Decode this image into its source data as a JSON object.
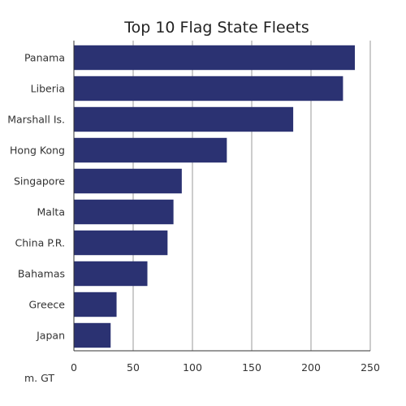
{
  "chart_data": {
    "type": "bar",
    "orientation": "horizontal",
    "title": "Top 10 Flag State Fleets",
    "unit_label": "m. GT",
    "categories": [
      "Panama",
      "Liberia",
      "Marshall Is.",
      "Hong Kong",
      "Singapore",
      "Malta",
      "China P.R.",
      "Bahamas",
      "Greece",
      "Japan"
    ],
    "values": [
      237,
      227,
      185,
      129,
      91,
      84,
      79,
      62,
      36,
      31
    ],
    "xlim": [
      0,
      250
    ],
    "xticks": [
      "0",
      "50",
      "100",
      "150",
      "200",
      "250"
    ],
    "grid": "vertical",
    "bar_color": "#2b3272"
  }
}
